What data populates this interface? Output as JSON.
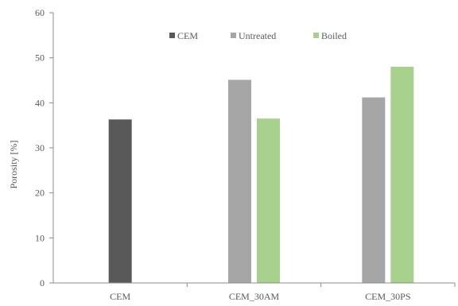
{
  "chart_data": {
    "type": "bar",
    "title": "",
    "xlabel": "",
    "ylabel": "Porosity [%]",
    "ylim": [
      0,
      60
    ],
    "yticks": [
      0,
      10,
      20,
      30,
      40,
      50,
      60
    ],
    "categories": [
      "CEM",
      "CEM_30AM",
      "CEM_30PS"
    ],
    "series": [
      {
        "name": "CEM",
        "color": "#595959",
        "values": [
          36.3,
          null,
          null
        ]
      },
      {
        "name": "Untreated",
        "color": "#a6a6a6",
        "values": [
          null,
          45.1,
          41.2
        ]
      },
      {
        "name": "Boiled",
        "color": "#a9d18e",
        "values": [
          null,
          36.5,
          48.0
        ]
      }
    ],
    "grid": false,
    "legend_position": "top-center"
  }
}
